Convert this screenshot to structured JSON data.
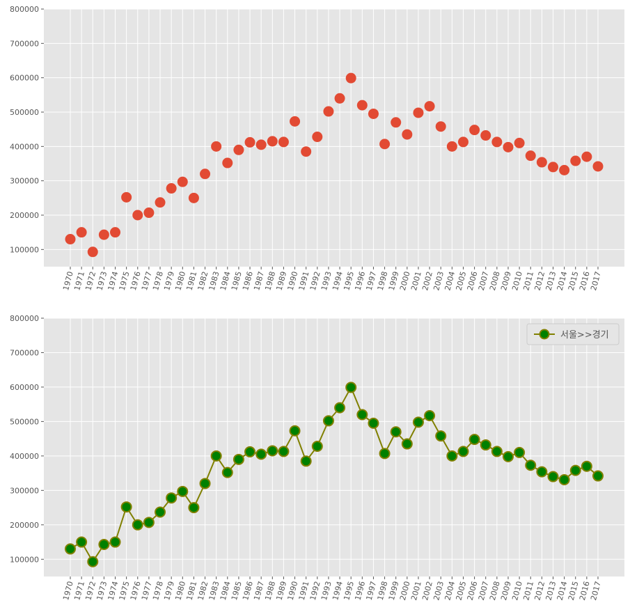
{
  "chart_data": [
    {
      "type": "scatter",
      "title": "",
      "xlabel": "",
      "ylabel": "",
      "categories": [
        "1970",
        "1971",
        "1972",
        "1973",
        "1974",
        "1975",
        "1976",
        "1977",
        "1978",
        "1979",
        "1980",
        "1981",
        "1982",
        "1983",
        "1984",
        "1985",
        "1986",
        "1987",
        "1988",
        "1989",
        "1990",
        "1991",
        "1992",
        "1993",
        "1994",
        "1995",
        "1996",
        "1997",
        "1998",
        "1999",
        "2000",
        "2001",
        "2002",
        "2003",
        "2004",
        "2005",
        "2006",
        "2007",
        "2008",
        "2009",
        "2010",
        "2011",
        "2012",
        "2013",
        "2014",
        "2015",
        "2016",
        "2017"
      ],
      "values": [
        130000,
        150000,
        93000,
        143000,
        150000,
        252000,
        200000,
        207000,
        237000,
        278000,
        297000,
        250000,
        320000,
        400000,
        352000,
        390000,
        412000,
        405000,
        415000,
        413000,
        473000,
        385000,
        428000,
        502000,
        540000,
        599000,
        520000,
        495000,
        407000,
        470000,
        435000,
        498000,
        517000,
        458000,
        400000,
        413000,
        448000,
        432000,
        413000,
        398000,
        410000,
        373000,
        354000,
        340000,
        331000,
        358000,
        370000,
        342000
      ],
      "ylim": [
        50000,
        800000
      ],
      "yticks": [
        100000,
        200000,
        300000,
        400000,
        500000,
        600000,
        700000,
        800000
      ],
      "grid": true,
      "colors": {
        "marker": "#e24a33",
        "background": "#e5e5e5",
        "grid": "#ffffff"
      }
    },
    {
      "type": "line",
      "title": "",
      "xlabel": "",
      "ylabel": "",
      "categories": [
        "1970",
        "1971",
        "1972",
        "1973",
        "1974",
        "1975",
        "1976",
        "1977",
        "1978",
        "1979",
        "1980",
        "1981",
        "1982",
        "1983",
        "1984",
        "1985",
        "1986",
        "1987",
        "1988",
        "1989",
        "1990",
        "1991",
        "1992",
        "1993",
        "1994",
        "1995",
        "1996",
        "1997",
        "1998",
        "1999",
        "2000",
        "2001",
        "2002",
        "2003",
        "2004",
        "2005",
        "2006",
        "2007",
        "2008",
        "2009",
        "2010",
        "2011",
        "2012",
        "2013",
        "2014",
        "2015",
        "2016",
        "2017"
      ],
      "series": [
        {
          "name": "서울>>경기",
          "values": [
            130000,
            150000,
            93000,
            143000,
            150000,
            252000,
            200000,
            207000,
            237000,
            278000,
            297000,
            250000,
            320000,
            400000,
            352000,
            390000,
            412000,
            405000,
            415000,
            413000,
            473000,
            385000,
            428000,
            502000,
            540000,
            599000,
            520000,
            495000,
            407000,
            470000,
            435000,
            498000,
            517000,
            458000,
            400000,
            413000,
            448000,
            432000,
            413000,
            398000,
            410000,
            373000,
            354000,
            340000,
            331000,
            358000,
            370000,
            342000
          ]
        }
      ],
      "ylim": [
        50000,
        800000
      ],
      "yticks": [
        100000,
        200000,
        300000,
        400000,
        500000,
        600000,
        700000,
        800000
      ],
      "grid": true,
      "legend": "top-right",
      "colors": {
        "line": "#808000",
        "marker_fill": "#008000",
        "marker_edge": "#808000",
        "background": "#e5e5e5",
        "grid": "#ffffff"
      }
    }
  ]
}
